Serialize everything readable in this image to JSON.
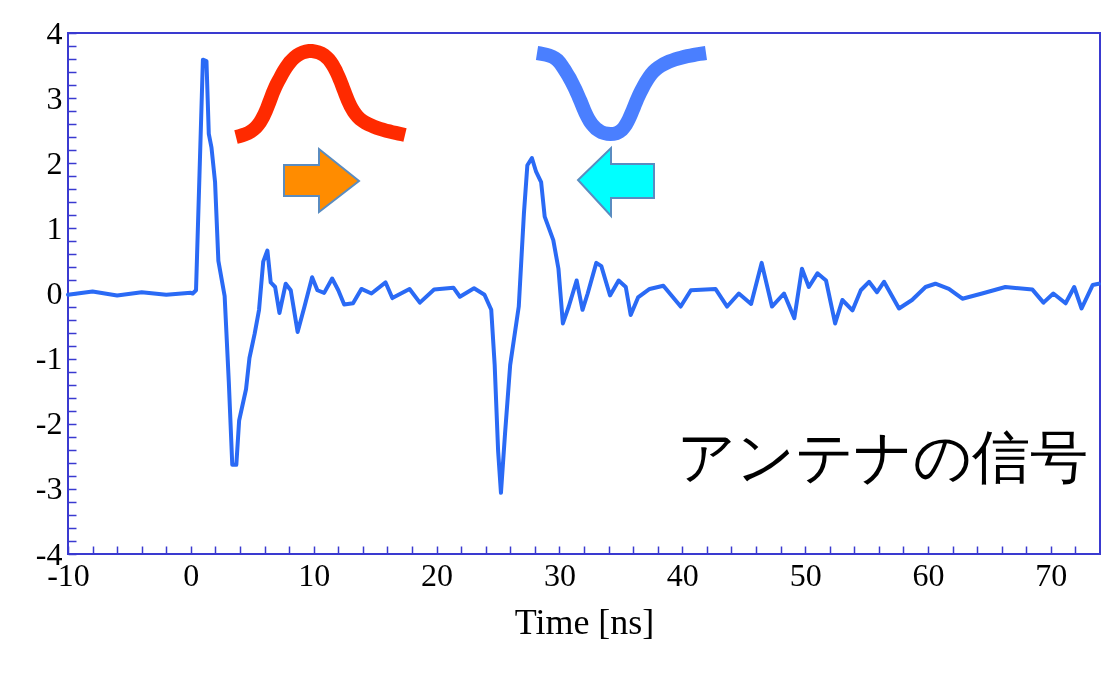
{
  "chart_data": {
    "type": "line",
    "xlabel": "Time [ns]",
    "annotations": [
      "アンテナの信号"
    ],
    "xlim": [
      -10,
      74
    ],
    "ylim": [
      -4,
      4
    ],
    "xticks": [
      -10,
      {
        "value": -8,
        "label": null
      },
      {
        "value": -6,
        "label": null
      },
      {
        "value": -4,
        "label": null
      },
      {
        "value": -2,
        "label": null
      },
      0,
      {
        "value": 2,
        "label": null
      },
      {
        "value": 4,
        "label": null
      },
      {
        "value": 6,
        "label": null
      },
      {
        "value": 8,
        "label": null
      },
      10,
      {
        "value": 12,
        "label": null
      },
      {
        "value": 14,
        "label": null
      },
      {
        "value": 16,
        "label": null
      },
      {
        "value": 18,
        "label": null
      },
      20,
      {
        "value": 22,
        "label": null
      },
      {
        "value": 24,
        "label": null
      },
      {
        "value": 26,
        "label": null
      },
      {
        "value": 28,
        "label": null
      },
      30,
      {
        "value": 32,
        "label": null
      },
      {
        "value": 34,
        "label": null
      },
      {
        "value": 36,
        "label": null
      },
      {
        "value": 38,
        "label": null
      },
      40,
      {
        "value": 42,
        "label": null
      },
      {
        "value": 44,
        "label": null
      },
      {
        "value": 46,
        "label": null
      },
      {
        "value": 48,
        "label": null
      },
      50,
      {
        "value": 52,
        "label": null
      },
      {
        "value": 54,
        "label": null
      },
      {
        "value": 56,
        "label": null
      },
      {
        "value": 58,
        "label": null
      },
      60,
      {
        "value": 62,
        "label": null
      },
      {
        "value": 64,
        "label": null
      },
      {
        "value": 66,
        "label": null
      },
      {
        "value": 68,
        "label": null
      },
      70,
      {
        "value": 72,
        "label": null
      }
    ],
    "yticks": [
      -4,
      {
        "value": -3.8,
        "label": null
      },
      {
        "value": -3.6,
        "label": null
      },
      {
        "value": -3.4,
        "label": null
      },
      {
        "value": -3.2,
        "label": null
      },
      -3,
      {
        "value": -2.8,
        "label": null
      },
      {
        "value": -2.6,
        "label": null
      },
      {
        "value": -2.4,
        "label": null
      },
      {
        "value": -2.2,
        "label": null
      },
      -2,
      {
        "value": -1.8,
        "label": null
      },
      {
        "value": -1.6,
        "label": null
      },
      {
        "value": -1.4,
        "label": null
      },
      {
        "value": -1.2,
        "label": null
      },
      -1,
      {
        "value": -0.8,
        "label": null
      },
      {
        "value": -0.6,
        "label": null
      },
      {
        "value": -0.4,
        "label": null
      },
      {
        "value": -0.2,
        "label": null
      },
      0,
      {
        "value": 0.2,
        "label": null
      },
      {
        "value": 0.4,
        "label": null
      },
      {
        "value": 0.6,
        "label": null
      },
      {
        "value": 0.8,
        "label": null
      },
      1,
      {
        "value": 1.2,
        "label": null
      },
      {
        "value": 1.4,
        "label": null
      },
      {
        "value": 1.6,
        "label": null
      },
      {
        "value": 1.8,
        "label": null
      },
      2,
      {
        "value": 2.2,
        "label": null
      },
      {
        "value": 2.4,
        "label": null
      },
      {
        "value": 2.6,
        "label": null
      },
      {
        "value": 2.8,
        "label": null
      },
      3,
      {
        "value": 3.2,
        "label": null
      },
      {
        "value": 3.4,
        "label": null
      },
      {
        "value": 3.6,
        "label": null
      },
      {
        "value": 3.8,
        "label": null
      },
      4
    ],
    "grid": false,
    "marker": "none",
    "line_style": "solid",
    "series": [
      {
        "color": "#2a6af5",
        "x": [
          -10,
          -8,
          -6,
          -4,
          -2,
          0,
          0.15,
          0.42,
          0.7,
          0.98,
          1.27,
          1.46,
          1.68,
          1.97,
          2.24,
          2.75,
          3.09,
          3.37,
          3.7,
          3.93,
          4.49,
          4.77,
          5.19,
          5.55,
          5.89,
          6.23,
          6.5,
          6.86,
          7.21,
          7.72,
          8.13,
          8.69,
          9.25,
          9.87,
          10.3,
          10.85,
          11.5,
          12.0,
          12.48,
          13.2,
          13.88,
          14.7,
          15.85,
          16.4,
          17.8,
          18.64,
          19.8,
          21.37,
          21.9,
          23.05,
          23.9,
          24.45,
          24.73,
          25.01,
          25.24,
          25.57,
          25.99,
          26.69,
          27.11,
          27.39,
          27.76,
          28.1,
          28.51,
          28.8,
          29.21,
          29.5,
          29.92,
          30.28,
          30.76,
          31.4,
          31.88,
          32.3,
          33.0,
          33.41,
          34.12,
          34.82,
          35.4,
          35.8,
          36.4,
          37.34,
          38.46,
          39.87,
          40.7,
          42.7,
          43.65,
          44.6,
          45.6,
          46.46,
          47.3,
          48.28,
          49.12,
          49.74,
          50.3,
          51.0,
          51.7,
          52.44,
          53.03,
          53.85,
          54.53,
          55.2,
          55.85,
          56.42,
          57.64,
          58.7,
          59.8,
          60.6,
          61.7,
          62.8,
          64.4,
          66.3,
          68.5,
          69.4,
          70.2,
          71.2,
          71.9,
          72.5,
          73.4,
          73.9
        ],
        "values": [
          -0.02,
          0.03,
          -0.03,
          0.02,
          -0.02,
          0.01,
          0.0,
          0.05,
          1.81,
          3.59,
          3.57,
          2.45,
          2.24,
          1.71,
          0.5,
          -0.04,
          -1.36,
          -2.63,
          -2.63,
          -1.95,
          -1.47,
          -0.99,
          -0.62,
          -0.25,
          0.49,
          0.66,
          0.17,
          0.1,
          -0.3,
          0.15,
          0.05,
          -0.59,
          -0.2,
          0.25,
          0.05,
          0.01,
          0.23,
          0.05,
          -0.17,
          -0.15,
          0.07,
          0.0,
          0.17,
          -0.07,
          0.07,
          -0.14,
          0.06,
          0.09,
          -0.05,
          0.08,
          -0.02,
          -0.25,
          -1.1,
          -2.42,
          -3.06,
          -2.16,
          -1.1,
          -0.2,
          1.23,
          1.97,
          2.08,
          1.87,
          1.71,
          1.18,
          0.97,
          0.82,
          0.38,
          -0.46,
          -0.2,
          0.2,
          -0.25,
          0.0,
          0.47,
          0.42,
          -0.03,
          0.2,
          0.1,
          -0.33,
          -0.06,
          0.07,
          0.12,
          -0.2,
          0.05,
          0.07,
          -0.2,
          0.0,
          -0.16,
          0.47,
          -0.2,
          0.0,
          -0.38,
          0.38,
          0.1,
          0.31,
          0.2,
          -0.46,
          -0.1,
          -0.26,
          0.05,
          0.18,
          0.02,
          0.18,
          -0.23,
          -0.1,
          0.1,
          0.15,
          0.07,
          -0.08,
          0.0,
          0.1,
          0.06,
          -0.14,
          0.0,
          -0.15,
          0.1,
          -0.23,
          0.13,
          0.15
        ]
      }
    ]
  }
}
